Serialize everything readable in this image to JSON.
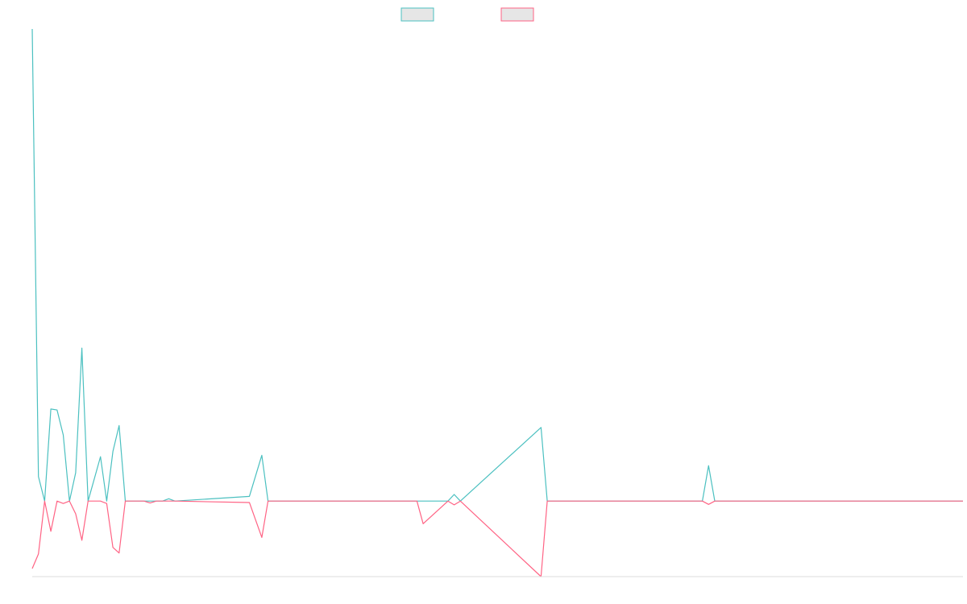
{
  "chart_data": {
    "type": "line",
    "title": "",
    "xlabel": "",
    "ylabel": "",
    "ylim": [
      -160,
      1000
    ],
    "grid": false,
    "legend_position": "top-center",
    "series": [
      {
        "name": "",
        "color": "#4bc0c0",
        "fill": "#e6e6e6",
        "points": [
          [
            0,
            1000
          ],
          [
            1,
            52
          ],
          [
            2,
            0
          ],
          [
            3,
            195
          ],
          [
            4,
            193
          ],
          [
            5,
            140
          ],
          [
            6,
            0
          ],
          [
            7,
            60
          ],
          [
            8,
            324
          ],
          [
            9,
            0
          ],
          [
            11,
            94
          ],
          [
            12,
            0
          ],
          [
            13,
            105
          ],
          [
            14,
            160
          ],
          [
            15,
            0
          ],
          [
            18,
            0
          ],
          [
            19,
            0
          ],
          [
            20,
            0
          ],
          [
            21,
            0
          ],
          [
            22,
            5
          ],
          [
            23,
            0
          ],
          [
            35,
            10
          ],
          [
            37,
            97
          ],
          [
            38,
            0
          ],
          [
            62,
            0
          ],
          [
            63,
            0
          ],
          [
            67,
            0
          ],
          [
            68,
            14
          ],
          [
            69,
            0
          ],
          [
            82,
            156
          ],
          [
            83,
            0
          ],
          [
            108,
            0
          ],
          [
            109,
            75
          ],
          [
            110,
            0
          ],
          [
            150,
            0
          ]
        ]
      },
      {
        "name": "",
        "color": "#ff6384",
        "fill": "#e6e6e6",
        "points": [
          [
            0,
            -143
          ],
          [
            1,
            -112
          ],
          [
            2,
            0
          ],
          [
            3,
            -64
          ],
          [
            4,
            0
          ],
          [
            5,
            -5
          ],
          [
            6,
            0
          ],
          [
            7,
            -27
          ],
          [
            8,
            -83
          ],
          [
            9,
            0
          ],
          [
            11,
            0
          ],
          [
            12,
            -5
          ],
          [
            13,
            -98
          ],
          [
            14,
            -110
          ],
          [
            15,
            0
          ],
          [
            18,
            0
          ],
          [
            19,
            -4
          ],
          [
            20,
            0
          ],
          [
            21,
            0
          ],
          [
            22,
            0
          ],
          [
            23,
            0
          ],
          [
            35,
            -3
          ],
          [
            37,
            -77
          ],
          [
            38,
            0
          ],
          [
            62,
            0
          ],
          [
            63,
            -48
          ],
          [
            67,
            0
          ],
          [
            68,
            -8
          ],
          [
            69,
            0
          ],
          [
            82,
            -160
          ],
          [
            83,
            0
          ],
          [
            108,
            0
          ],
          [
            109,
            -7
          ],
          [
            110,
            0
          ],
          [
            150,
            0
          ]
        ]
      }
    ],
    "x_range": [
      0,
      150
    ]
  }
}
